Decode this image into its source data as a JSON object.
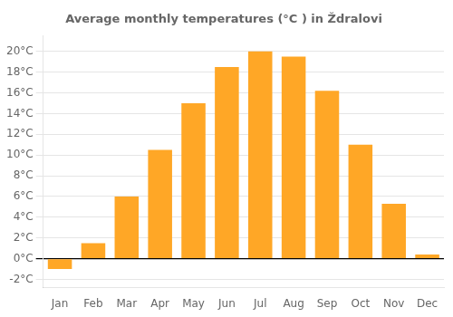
{
  "chart_data": {
    "type": "bar",
    "title": "Average monthly temperatures (°C ) in Ždralovi",
    "categories": [
      "Jan",
      "Feb",
      "Mar",
      "Apr",
      "May",
      "Jun",
      "Jul",
      "Aug",
      "Sep",
      "Oct",
      "Nov",
      "Dec"
    ],
    "values": [
      -1.0,
      1.5,
      6.0,
      10.5,
      15.0,
      18.5,
      20.0,
      19.5,
      16.2,
      11.0,
      5.3,
      0.4
    ],
    "color": "#FFA726",
    "ylim": [
      -2.8,
      21.5
    ],
    "yticks": [
      {
        "value": -2,
        "label": "-2°C"
      },
      {
        "value": 0,
        "label": "0°C"
      },
      {
        "value": 2,
        "label": "2°C"
      },
      {
        "value": 4,
        "label": "4°C"
      },
      {
        "value": 6,
        "label": "6°C"
      },
      {
        "value": 8,
        "label": "8°C"
      },
      {
        "value": 10,
        "label": "10°C"
      },
      {
        "value": 12,
        "label": "12°C"
      },
      {
        "value": 14,
        "label": "14°C"
      },
      {
        "value": 16,
        "label": "16°C"
      },
      {
        "value": 18,
        "label": "18°C"
      },
      {
        "value": 20,
        "label": "20°C"
      }
    ],
    "grid": true
  }
}
